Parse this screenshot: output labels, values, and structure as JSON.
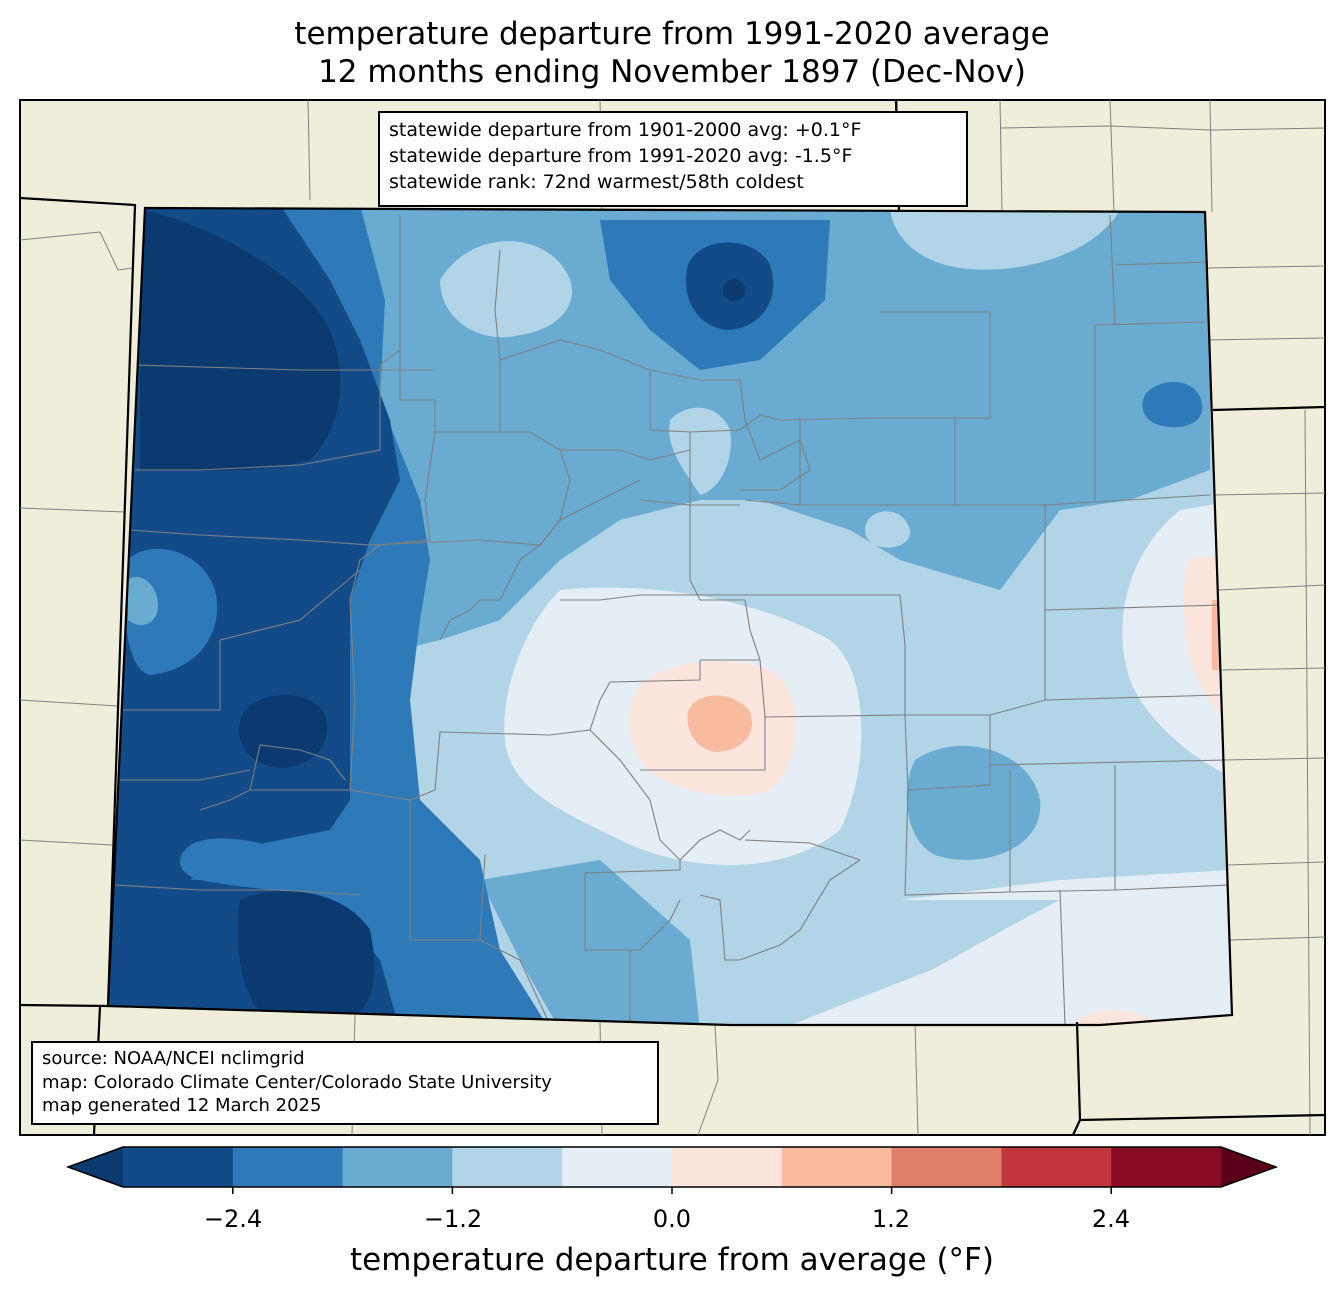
{
  "title": {
    "line1": "temperature departure from 1991-2020 average",
    "line2": "12 months ending November 1897 (Dec-Nov)"
  },
  "stats_box": {
    "line1": "statewide departure from 1901-2000 avg: +0.1°F",
    "line2": "statewide departure from 1991-2020 avg: -1.5°F",
    "line3": "statewide rank: 72nd warmest/58th coldest"
  },
  "source_box": {
    "line1": "source: NOAA/NCEI nclimgrid",
    "line2": "map: Colorado Climate Center/Colorado State University",
    "line3": "map generated 12 March 2025"
  },
  "colorbar": {
    "label": "temperature departure from average (°F)",
    "ticks": [
      "−2.4",
      "−1.2",
      "0.0",
      "1.2",
      "2.4"
    ],
    "tick_values": [
      -2.4,
      -1.2,
      0.0,
      1.2,
      2.4
    ],
    "bounds": [
      -3.0,
      3.0
    ],
    "step": 0.6,
    "colors": [
      "#0b3a70",
      "#134b89",
      "#2e7ab8",
      "#69abd1",
      "#b1d4e7",
      "#e5eef5",
      "#fbe5dc",
      "#f8bba0",
      "#e07f68",
      "#c0363b",
      "#880a25",
      "#5a0018"
    ]
  },
  "map_colors": {
    "land": "#efeedb",
    "state_border": "#000000",
    "county_border": "#808080"
  }
}
